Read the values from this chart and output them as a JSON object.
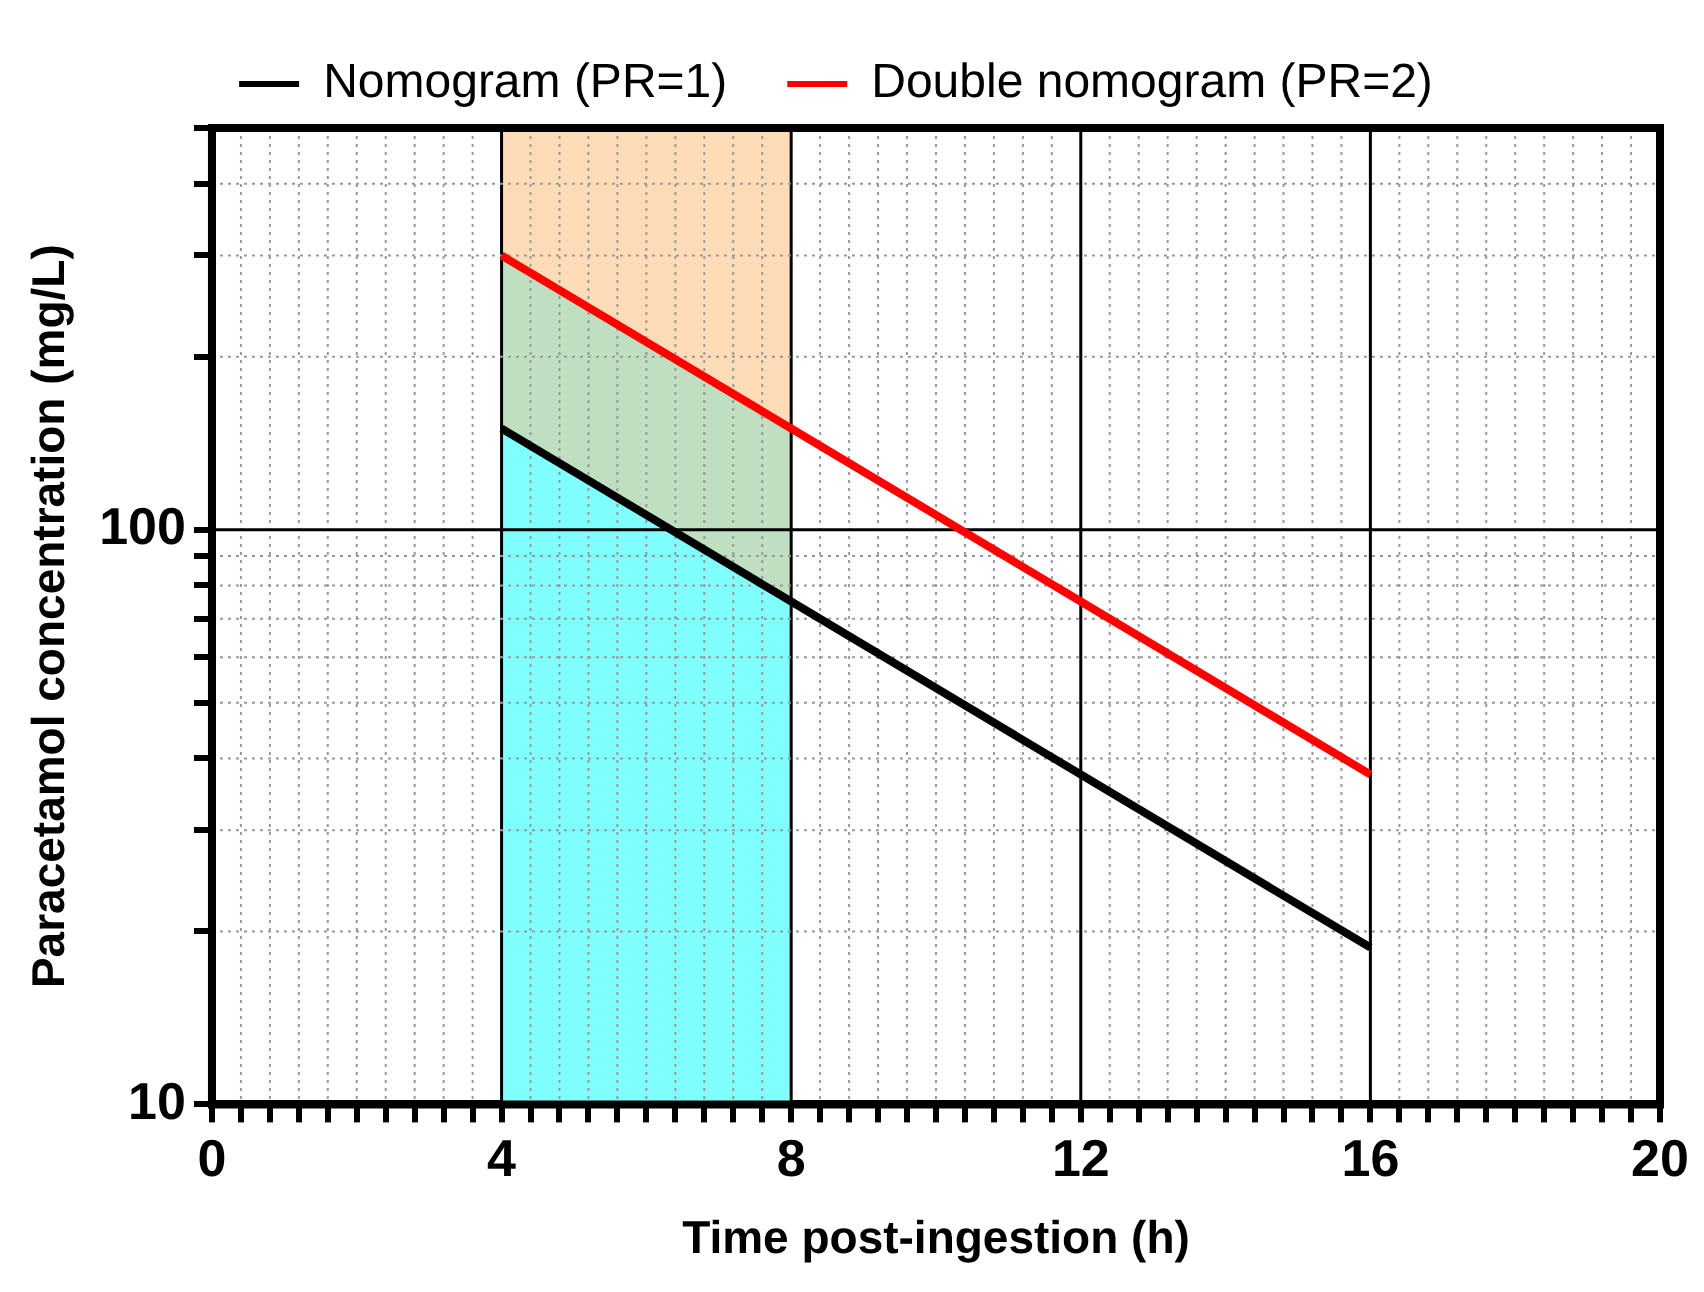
{
  "chart_data": {
    "type": "line",
    "stacked": true,
    "xlabel": "Time post-ingestion (h)",
    "ylabel": "Paracetamol concentration (mg/L)",
    "log": "y",
    "grid": true,
    "legend": "top",
    "marker": "none",
    "line_style": "solid",
    "xlim": [
      0,
      20
    ],
    "ylim": [
      10,
      500
    ],
    "xticks": [
      0,
      {
        "value": 0.4,
        "label": null
      },
      {
        "value": 0.8,
        "label": null
      },
      {
        "value": 1.2,
        "label": null
      },
      {
        "value": 1.6,
        "label": null
      },
      {
        "value": 2,
        "label": null
      },
      {
        "value": 2.4,
        "label": null
      },
      {
        "value": 2.8,
        "label": null
      },
      {
        "value": 3.2,
        "label": null
      },
      {
        "value": 3.6,
        "label": null
      },
      4,
      {
        "value": 4.4,
        "label": null
      },
      {
        "value": 4.8,
        "label": null
      },
      {
        "value": 5.2,
        "label": null
      },
      {
        "value": 5.6,
        "label": null
      },
      {
        "value": 6,
        "label": null
      },
      {
        "value": 6.4,
        "label": null
      },
      {
        "value": 6.8,
        "label": null
      },
      {
        "value": 7.2,
        "label": null
      },
      {
        "value": 7.6,
        "label": null
      },
      8,
      {
        "value": 8.4,
        "label": null
      },
      {
        "value": 8.8,
        "label": null
      },
      {
        "value": 9.2,
        "label": null
      },
      {
        "value": 9.6,
        "label": null
      },
      {
        "value": 10,
        "label": null
      },
      {
        "value": 10.4,
        "label": null
      },
      {
        "value": 10.8,
        "label": null
      },
      {
        "value": 11.2,
        "label": null
      },
      {
        "value": 11.6,
        "label": null
      },
      12,
      {
        "value": 12.4,
        "label": null
      },
      {
        "value": 12.8,
        "label": null
      },
      {
        "value": 13.2,
        "label": null
      },
      {
        "value": 13.6,
        "label": null
      },
      {
        "value": 14,
        "label": null
      },
      {
        "value": 14.4,
        "label": null
      },
      {
        "value": 14.8,
        "label": null
      },
      {
        "value": 15.2,
        "label": null
      },
      {
        "value": 15.6,
        "label": null
      },
      16,
      {
        "value": 16.4,
        "label": null
      },
      {
        "value": 16.8,
        "label": null
      },
      {
        "value": 17.2,
        "label": null
      },
      {
        "value": 17.6,
        "label": null
      },
      {
        "value": 18,
        "label": null
      },
      {
        "value": 18.4,
        "label": null
      },
      {
        "value": 18.8,
        "label": null
      },
      {
        "value": 19.2,
        "label": null
      },
      {
        "value": 19.6,
        "label": null
      },
      20
    ],
    "yticks": [
      10,
      {
        "value": 20,
        "label": null
      },
      {
        "value": 30,
        "label": null
      },
      {
        "value": 40,
        "label": null
      },
      {
        "value": 50,
        "label": null
      },
      {
        "value": 60,
        "label": null
      },
      {
        "value": 70,
        "label": null
      },
      {
        "value": 80,
        "label": null
      },
      {
        "value": 90,
        "label": null
      },
      100,
      {
        "value": 200,
        "label": null
      },
      {
        "value": 300,
        "label": null
      },
      {
        "value": 400,
        "label": null
      },
      {
        "value": 500,
        "label": null
      }
    ],
    "series": [
      {
        "type": "area",
        "color": "#80ffff",
        "x": [
          4,
          8
        ],
        "values": [
          150,
          75
        ]
      },
      {
        "type": "area",
        "color": "#c0dfc0",
        "x": [
          4,
          8
        ],
        "values": [
          150,
          75
        ]
      },
      {
        "type": "area",
        "color": "#ffdcb8",
        "x": [
          4,
          8
        ],
        "values": [
          200,
          350
        ]
      },
      {
        "name": "Nomogram (PR=1)",
        "color": "#000000",
        "x": [
          4,
          8,
          12,
          16
        ],
        "values": [
          150,
          75,
          37.5,
          18.75
        ]
      },
      {
        "name": "Double nomogram (PR=2)",
        "color": "#ff0000",
        "x": [
          4,
          8,
          12,
          16
        ],
        "values": [
          300,
          150,
          75,
          37.5
        ]
      }
    ]
  }
}
